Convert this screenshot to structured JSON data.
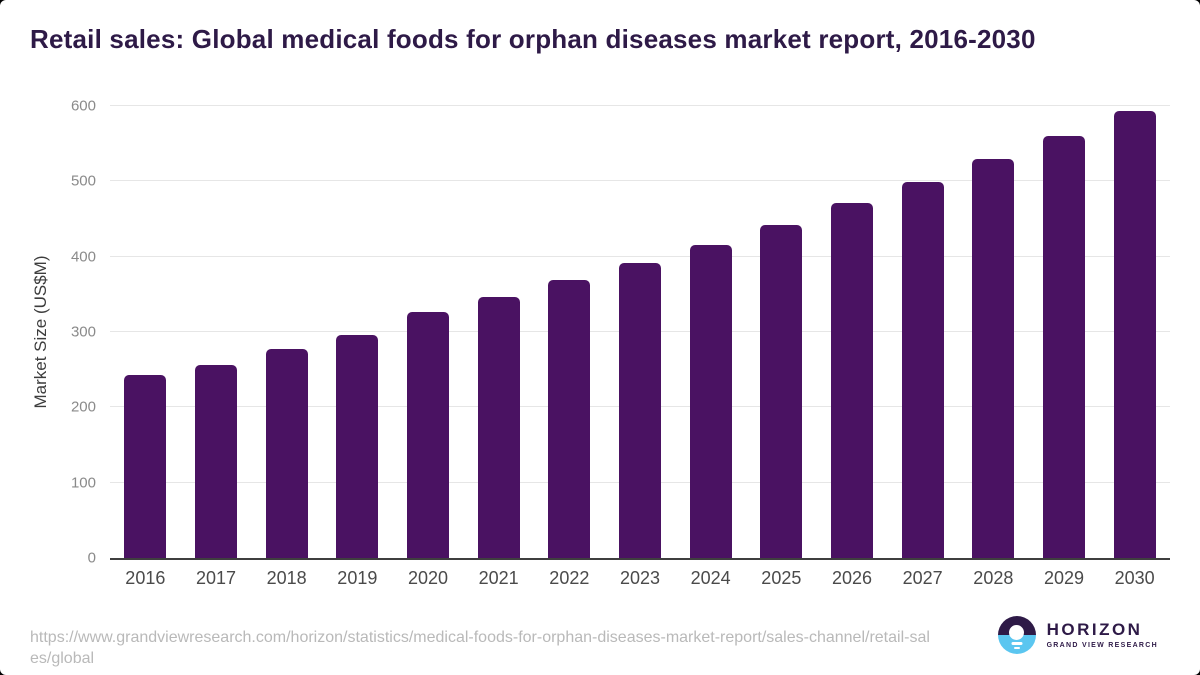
{
  "header": {
    "title": "Retail sales: Global medical foods for orphan diseases market report, 2016-2030"
  },
  "chart_data": {
    "type": "bar",
    "title": "Retail sales: Global medical foods for orphan diseases market report, 2016-2030",
    "categories": [
      "2016",
      "2017",
      "2018",
      "2019",
      "2020",
      "2021",
      "2022",
      "2023",
      "2024",
      "2025",
      "2026",
      "2027",
      "2028",
      "2029",
      "2030"
    ],
    "values": [
      243,
      256,
      277,
      296,
      326,
      347,
      369,
      392,
      416,
      442,
      471,
      499,
      530,
      560,
      593
    ],
    "xlabel": "",
    "ylabel": "Market Size (US$M)",
    "ylim": [
      0,
      600
    ],
    "yticks": [
      0,
      100,
      200,
      300,
      400,
      500,
      600
    ],
    "grid": true,
    "legend": "none"
  },
  "footer": {
    "source_url": "https://www.grandviewresearch.com/horizon/statistics/medical-foods-for-orphan-diseases-market-report/sales-channel/retail-sales/global",
    "source_url_lines": [
      "https://www.grandviewresearch.com/horizon/statistics/medical-foods-for-orphan-diseases-market-report/sales-channel/retail-sal",
      "es/global"
    ],
    "logo": {
      "title": "HORIZON",
      "subtitle": "GRAND VIEW RESEARCH"
    }
  },
  "colors": {
    "bar": "#4a1262",
    "brand_purple": "#2e1a47",
    "brand_blue": "#5bc6f0",
    "grid": "#e6e6e6",
    "axis": "#3f3f3f",
    "tick": "#8a8a8a",
    "x_label": "#4a4a4a",
    "url": "#b9b9b9"
  }
}
